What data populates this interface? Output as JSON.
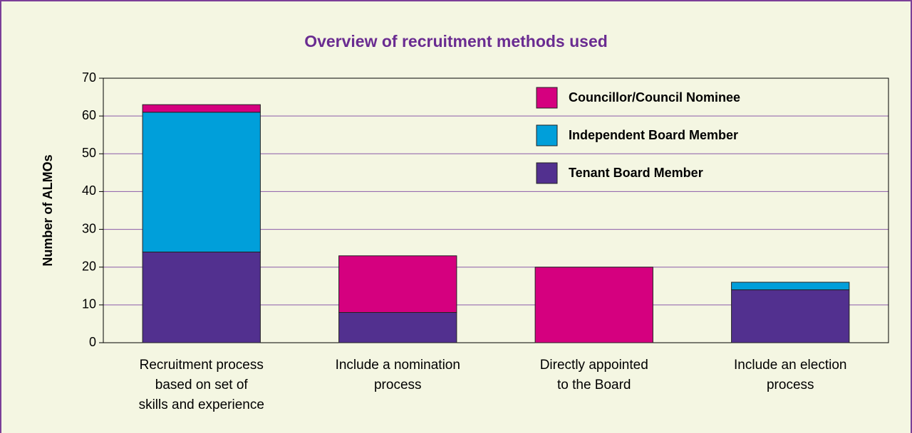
{
  "chart_data": {
    "type": "stacked_bar",
    "title": "Overview of recruitment methods used",
    "y_label": "Number of ALMOs",
    "categories": [
      "Recruitment process\nbased on set of\nskills and experience",
      "Include a nomination\nprocess",
      "Directly appointed\nto the Board",
      "Include an election\nprocess"
    ],
    "series": [
      {
        "name": "Tenant Board Member",
        "color": "#52308f",
        "values": [
          24,
          8,
          0,
          14
        ]
      },
      {
        "name": "Independent Board Member",
        "color": "#009fda",
        "values": [
          37,
          0,
          0,
          2
        ]
      },
      {
        "name": "Councillor/Council Nominee",
        "color": "#d5007f",
        "values": [
          2,
          15,
          20,
          0
        ]
      }
    ],
    "ylim": [
      0,
      70
    ],
    "yticks": [
      0,
      10,
      20,
      30,
      40,
      50,
      60,
      70
    ],
    "grid": true,
    "legend": "top-right"
  }
}
